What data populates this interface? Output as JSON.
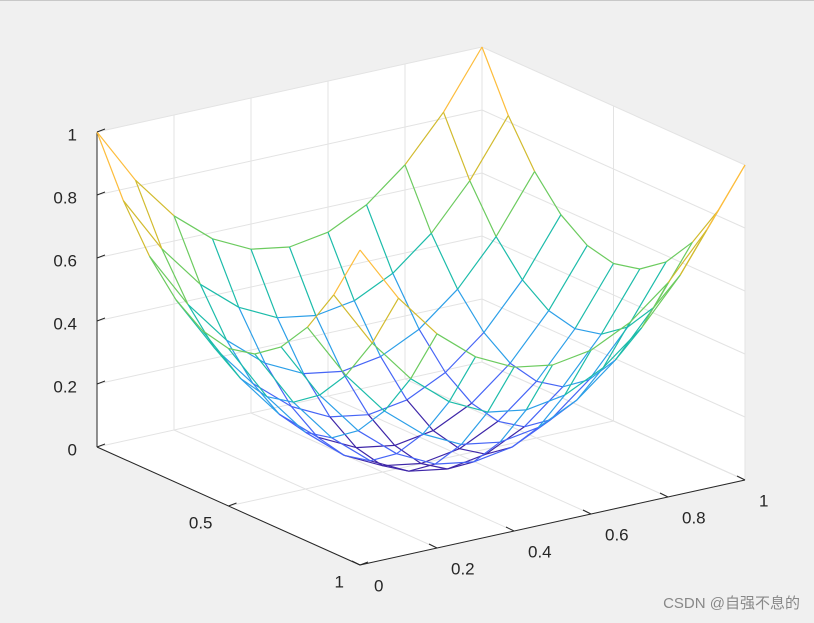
{
  "chart_data": {
    "type": "mesh3d",
    "x": [
      0,
      0.1,
      0.2,
      0.3,
      0.4,
      0.5,
      0.6,
      0.7,
      0.8,
      0.9,
      1
    ],
    "y": [
      0,
      0.1,
      0.2,
      0.3,
      0.4,
      0.5,
      0.6,
      0.7,
      0.8,
      0.9,
      1
    ],
    "z": [
      [
        1,
        0.82,
        0.68,
        0.58,
        0.52,
        0.5,
        0.52,
        0.58,
        0.68,
        0.82,
        1
      ],
      [
        0.82,
        0.64,
        0.5,
        0.4,
        0.34,
        0.32,
        0.34,
        0.4,
        0.5,
        0.64,
        0.82
      ],
      [
        0.68,
        0.5,
        0.36,
        0.26,
        0.2,
        0.18,
        0.2,
        0.26,
        0.36,
        0.5,
        0.68
      ],
      [
        0.58,
        0.4,
        0.26,
        0.16,
        0.1,
        0.08,
        0.1,
        0.16,
        0.26,
        0.4,
        0.58
      ],
      [
        0.52,
        0.34,
        0.2,
        0.1,
        0.04,
        0.02,
        0.04,
        0.1,
        0.2,
        0.34,
        0.52
      ],
      [
        0.5,
        0.32,
        0.18,
        0.08,
        0.02,
        0,
        0.02,
        0.08,
        0.18,
        0.32,
        0.5
      ],
      [
        0.52,
        0.34,
        0.2,
        0.1,
        0.04,
        0.02,
        0.04,
        0.1,
        0.2,
        0.34,
        0.52
      ],
      [
        0.58,
        0.4,
        0.26,
        0.16,
        0.1,
        0.08,
        0.1,
        0.16,
        0.26,
        0.4,
        0.58
      ],
      [
        0.68,
        0.5,
        0.36,
        0.26,
        0.2,
        0.18,
        0.2,
        0.26,
        0.36,
        0.5,
        0.68
      ],
      [
        0.82,
        0.64,
        0.5,
        0.4,
        0.34,
        0.32,
        0.34,
        0.4,
        0.5,
        0.64,
        0.82
      ],
      [
        1,
        0.82,
        0.68,
        0.58,
        0.52,
        0.5,
        0.52,
        0.58,
        0.68,
        0.82,
        1
      ]
    ],
    "xlim": [
      0,
      1
    ],
    "ylim": [
      0,
      1
    ],
    "zlim": [
      0,
      1
    ],
    "xticks": [
      0.5,
      1
    ],
    "yticks": [
      0,
      0.2,
      0.4,
      0.6,
      0.8,
      1
    ],
    "zticks": [
      0,
      0.2,
      0.4,
      0.6,
      0.8,
      1
    ],
    "grid": true,
    "colormap": [
      "#3e26a8",
      "#4665f6",
      "#2c9fe8",
      "#1cbcaa",
      "#6ccb5f",
      "#d2bb2e",
      "#fdbd3c",
      "#f9fb0e"
    ]
  },
  "watermark": "CSDN @自强不息的"
}
